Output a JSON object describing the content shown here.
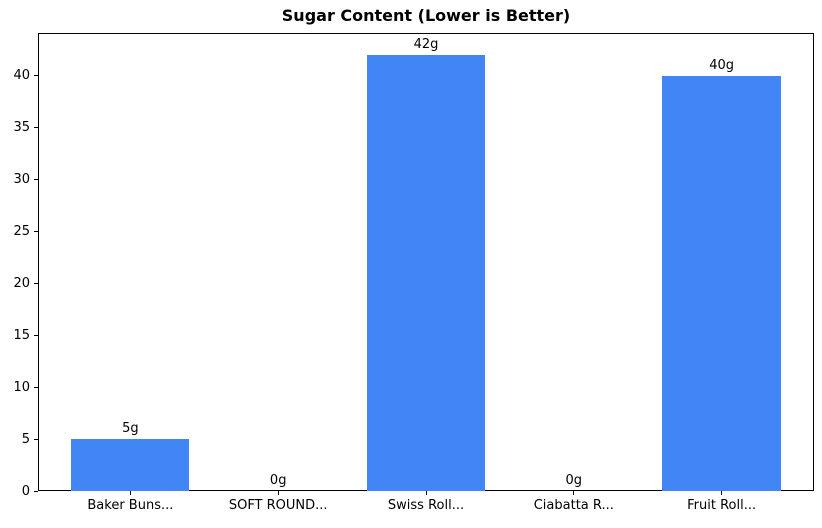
{
  "chart_data": {
    "type": "bar",
    "title": "Sugar Content (Lower is Better)",
    "categories": [
      "Baker Buns...",
      "SOFT ROUND...",
      "Swiss Roll...",
      "Ciabatta R...",
      "Fruit Roll..."
    ],
    "values": [
      5,
      0,
      42,
      0,
      40
    ],
    "bar_labels": [
      "5g",
      "0g",
      "42g",
      "0g",
      "40g"
    ],
    "xlabel": "",
    "ylabel": "",
    "ylim": [
      0,
      44.1
    ],
    "yticks": [
      0,
      5,
      10,
      15,
      20,
      25,
      30,
      35,
      40
    ],
    "grid": false,
    "legend_position": "none",
    "bar_color": "#4285f4",
    "axis_color": "#000000",
    "text_color": "#000000",
    "background_color": "#ffffff"
  }
}
